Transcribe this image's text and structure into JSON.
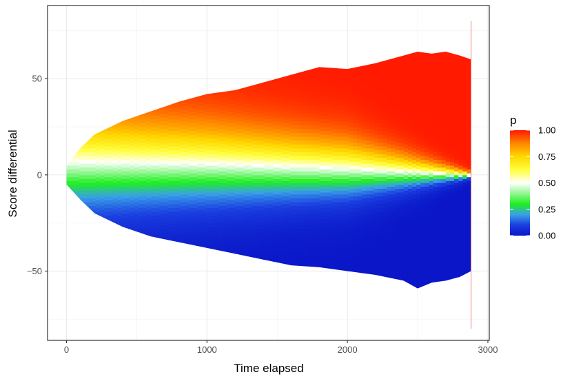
{
  "chart_data": {
    "type": "heatmap",
    "title": "",
    "xlabel": "Time elapsed",
    "ylabel": "Score differential",
    "xlim": [
      -135,
      3010
    ],
    "ylim": [
      -86,
      88
    ],
    "x_ticks": [
      0,
      1000,
      2000,
      3000
    ],
    "x_tick_labels": [
      "0",
      "1000",
      "2000",
      "3000"
    ],
    "y_ticks": [
      -50,
      0,
      50
    ],
    "y_tick_labels": [
      "−50",
      "0",
      "50"
    ],
    "grid": true,
    "theme": "bw",
    "legend": {
      "title": "p",
      "placement": "right",
      "breaks": [
        0,
        0.25,
        0.5,
        0.75,
        1
      ],
      "labels": [
        "0.00",
        "0.25",
        "0.50",
        "0.75",
        "1.00"
      ],
      "colors": [
        {
          "value": 0.0,
          "color": "#0a16c8"
        },
        {
          "value": 0.1,
          "color": "#1a3ee0"
        },
        {
          "value": 0.2,
          "color": "#3aa0e8"
        },
        {
          "value": 0.3,
          "color": "#1ef01e"
        },
        {
          "value": 0.38,
          "color": "#7cf57c"
        },
        {
          "value": 0.5,
          "color": "#ffffff"
        },
        {
          "value": 0.62,
          "color": "#ffff40"
        },
        {
          "value": 0.75,
          "color": "#ffd800"
        },
        {
          "value": 0.87,
          "color": "#ff8a00"
        },
        {
          "value": 1.0,
          "color": "#ff1a00"
        }
      ]
    },
    "x_max": 2880,
    "envelope": [
      {
        "x": 0,
        "lower": -5,
        "upper": 5
      },
      {
        "x": 100,
        "lower": -13,
        "upper": 14
      },
      {
        "x": 200,
        "lower": -20,
        "upper": 21
      },
      {
        "x": 400,
        "lower": -27,
        "upper": 28
      },
      {
        "x": 600,
        "lower": -32,
        "upper": 33
      },
      {
        "x": 800,
        "lower": -35,
        "upper": 38
      },
      {
        "x": 1000,
        "lower": -38,
        "upper": 42
      },
      {
        "x": 1200,
        "lower": -41,
        "upper": 44
      },
      {
        "x": 1400,
        "lower": -44,
        "upper": 48
      },
      {
        "x": 1600,
        "lower": -47,
        "upper": 52
      },
      {
        "x": 1800,
        "lower": -48,
        "upper": 56
      },
      {
        "x": 2000,
        "lower": -50,
        "upper": 55
      },
      {
        "x": 2200,
        "lower": -52,
        "upper": 58
      },
      {
        "x": 2400,
        "lower": -55,
        "upper": 62
      },
      {
        "x": 2500,
        "lower": -59,
        "upper": 64
      },
      {
        "x": 2600,
        "lower": -56,
        "upper": 63
      },
      {
        "x": 2700,
        "lower": -55,
        "upper": 64
      },
      {
        "x": 2800,
        "lower": -53,
        "upper": 62
      },
      {
        "x": 2880,
        "lower": -50,
        "upper": 60
      }
    ],
    "center_line": [
      {
        "x": 0,
        "p50_score": 7
      },
      {
        "x": 1000,
        "p50_score": 6
      },
      {
        "x": 2000,
        "p50_score": 3.5
      },
      {
        "x": 2880,
        "p50_score": 0
      }
    ],
    "spread_scale": [
      {
        "x": 0,
        "sd": 30
      },
      {
        "x": 1000,
        "sd": 25
      },
      {
        "x": 2000,
        "sd": 18
      },
      {
        "x": 2880,
        "sd": 1.8
      }
    ],
    "vertical_line": {
      "x": 2880,
      "lower": -80,
      "upper": 80,
      "color": "#f08080"
    }
  }
}
